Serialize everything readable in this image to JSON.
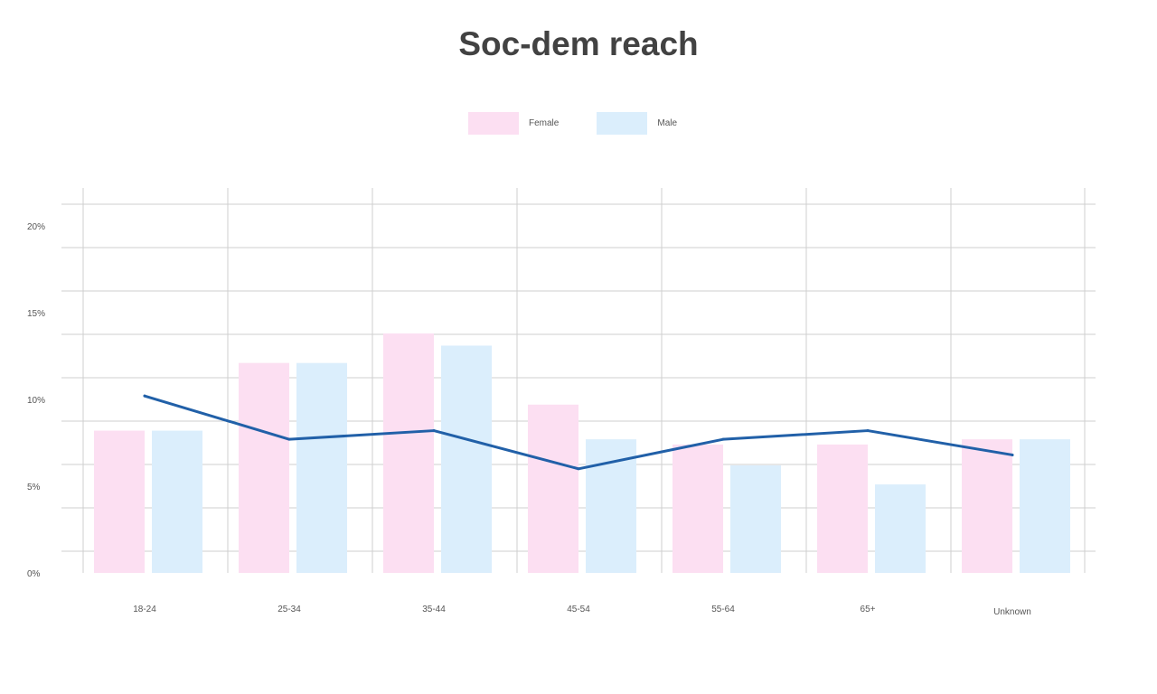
{
  "chart_data": {
    "type": "bar",
    "title": "Soc-dem reach",
    "xlabel": "",
    "ylabel": "",
    "categories": [
      "18-24",
      "25-34",
      "35-44",
      "45-54",
      "55-64",
      "65+",
      "Unknown"
    ],
    "series": [
      {
        "name": "Female",
        "type": "bar",
        "color": "#fcdff2",
        "values": [
          8.2,
          12.1,
          13.8,
          9.7,
          7.4,
          7.4,
          7.7
        ]
      },
      {
        "name": "Male",
        "type": "bar",
        "color": "#dbeefc",
        "values": [
          8.2,
          12.1,
          13.1,
          7.7,
          6.2,
          5.1,
          7.7
        ]
      },
      {
        "type": "line",
        "color": "#2160a8",
        "values": [
          10.2,
          7.7,
          8.2,
          6.0,
          7.7,
          8.2,
          6.8
        ]
      }
    ],
    "ylim": [
      0,
      20
    ],
    "yticks": [
      0,
      5,
      10,
      15,
      20
    ],
    "ytick_labels": [
      "0%",
      "5%",
      "10%",
      "15%",
      "20%"
    ],
    "grid": true,
    "legend_position": "top-center"
  }
}
